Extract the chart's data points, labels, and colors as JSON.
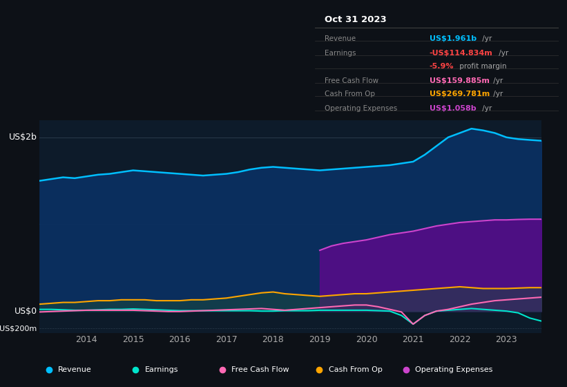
{
  "background_color": "#0d1117",
  "plot_bg_color": "#0d1b2a",
  "title_box_date": "Oct 31 2023",
  "ylabel_top": "US$2b",
  "ylabel_zero": "US$0",
  "ylabel_neg": "-US$200m",
  "years": [
    2013.0,
    2013.25,
    2013.5,
    2013.75,
    2014.0,
    2014.25,
    2014.5,
    2014.75,
    2015.0,
    2015.25,
    2015.5,
    2015.75,
    2016.0,
    2016.25,
    2016.5,
    2016.75,
    2017.0,
    2017.25,
    2017.5,
    2017.75,
    2018.0,
    2018.25,
    2018.5,
    2018.75,
    2019.0,
    2019.25,
    2019.5,
    2019.75,
    2020.0,
    2020.25,
    2020.5,
    2020.75,
    2021.0,
    2021.25,
    2021.5,
    2021.75,
    2022.0,
    2022.25,
    2022.5,
    2022.75,
    2023.0,
    2023.25,
    2023.5,
    2023.75
  ],
  "revenue": [
    1.5,
    1.52,
    1.54,
    1.53,
    1.55,
    1.57,
    1.58,
    1.6,
    1.62,
    1.61,
    1.6,
    1.59,
    1.58,
    1.57,
    1.56,
    1.57,
    1.58,
    1.6,
    1.63,
    1.65,
    1.66,
    1.65,
    1.64,
    1.63,
    1.62,
    1.63,
    1.64,
    1.65,
    1.66,
    1.67,
    1.68,
    1.7,
    1.72,
    1.8,
    1.9,
    2.0,
    2.05,
    2.1,
    2.08,
    2.05,
    2.0,
    1.98,
    1.97,
    1.961
  ],
  "earnings": [
    0.02,
    0.02,
    0.015,
    0.01,
    0.01,
    0.015,
    0.02,
    0.02,
    0.025,
    0.02,
    0.015,
    0.01,
    0.005,
    0.005,
    0.005,
    0.005,
    0.005,
    0.005,
    0.005,
    0.0,
    0.0,
    0.005,
    0.005,
    0.005,
    0.01,
    0.01,
    0.01,
    0.01,
    0.01,
    0.005,
    0.0,
    -0.05,
    -0.15,
    -0.05,
    0.0,
    0.01,
    0.02,
    0.03,
    0.02,
    0.01,
    0.0,
    -0.02,
    -0.08,
    -0.115
  ],
  "free_cash_flow": [
    -0.01,
    -0.005,
    0.0,
    0.005,
    0.01,
    0.01,
    0.01,
    0.01,
    0.01,
    0.005,
    0.0,
    -0.005,
    -0.005,
    0.0,
    0.005,
    0.01,
    0.015,
    0.02,
    0.025,
    0.03,
    0.02,
    0.01,
    0.02,
    0.03,
    0.04,
    0.05,
    0.06,
    0.07,
    0.07,
    0.05,
    0.02,
    -0.01,
    -0.15,
    -0.05,
    0.0,
    0.02,
    0.05,
    0.08,
    0.1,
    0.12,
    0.13,
    0.14,
    0.15,
    0.16
  ],
  "cash_from_op": [
    0.08,
    0.09,
    0.1,
    0.1,
    0.11,
    0.12,
    0.12,
    0.13,
    0.13,
    0.13,
    0.12,
    0.12,
    0.12,
    0.13,
    0.13,
    0.14,
    0.15,
    0.17,
    0.19,
    0.21,
    0.22,
    0.2,
    0.19,
    0.18,
    0.17,
    0.18,
    0.19,
    0.2,
    0.2,
    0.21,
    0.22,
    0.23,
    0.24,
    0.25,
    0.26,
    0.27,
    0.28,
    0.27,
    0.26,
    0.26,
    0.26,
    0.265,
    0.27,
    0.27
  ],
  "operating_expenses": [
    0.0,
    0.0,
    0.0,
    0.0,
    0.0,
    0.0,
    0.0,
    0.0,
    0.0,
    0.0,
    0.0,
    0.0,
    0.0,
    0.0,
    0.0,
    0.0,
    0.0,
    0.0,
    0.0,
    0.0,
    0.0,
    0.0,
    0.0,
    0.0,
    0.7,
    0.75,
    0.78,
    0.8,
    0.82,
    0.85,
    0.88,
    0.9,
    0.92,
    0.95,
    0.98,
    1.0,
    1.02,
    1.03,
    1.04,
    1.05,
    1.05,
    1.055,
    1.058,
    1.058
  ],
  "x_ticks": [
    2014,
    2015,
    2016,
    2017,
    2018,
    2019,
    2020,
    2021,
    2022,
    2023
  ],
  "legend": [
    {
      "label": "Revenue",
      "color": "#00bfff"
    },
    {
      "label": "Earnings",
      "color": "#00e5cc"
    },
    {
      "label": "Free Cash Flow",
      "color": "#ff69b4"
    },
    {
      "label": "Cash From Op",
      "color": "#ffa500"
    },
    {
      "label": "Operating Expenses",
      "color": "#cc44cc"
    }
  ],
  "grid_color": "#2a3a4a",
  "revenue_line_color": "#00bfff",
  "earnings_line_color": "#00e5cc",
  "free_cash_flow_color": "#ff69b4",
  "cash_from_op_color": "#ffa500",
  "op_expenses_color": "#cc44cc",
  "revenue_fill_color": "#0a3060",
  "op_expenses_fill_color": "#5a0a8a",
  "ylim": [
    -0.25,
    2.2
  ]
}
